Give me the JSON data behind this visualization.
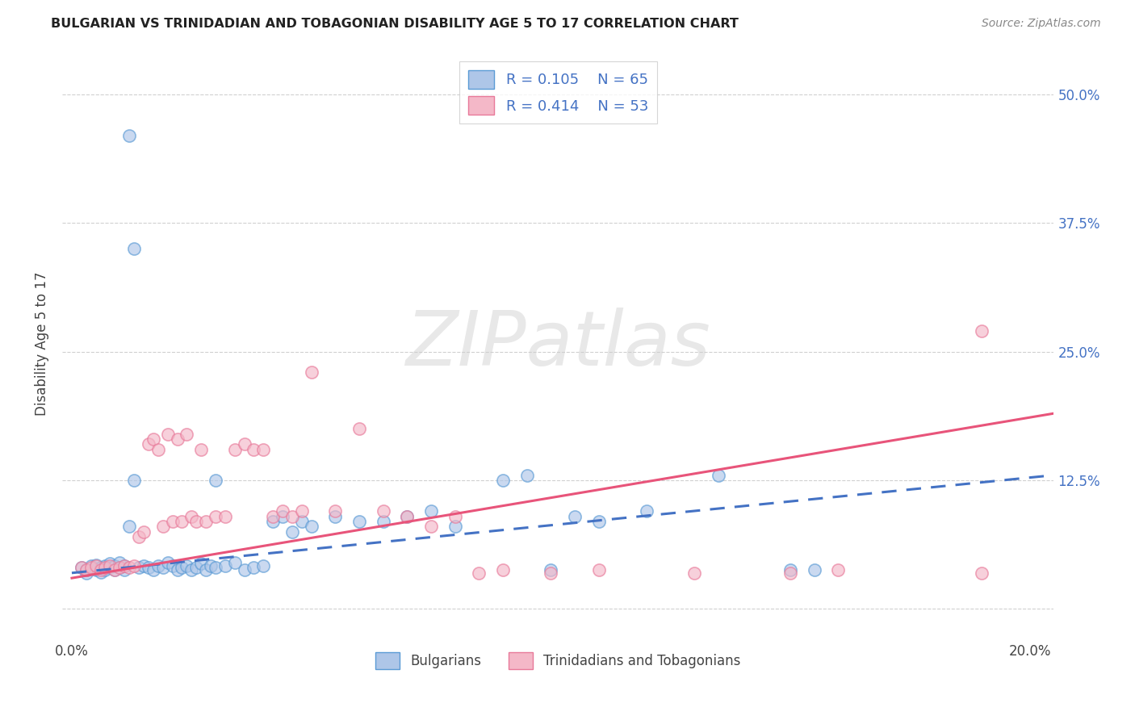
{
  "title": "BULGARIAN VS TRINIDADIAN AND TOBAGONIAN DISABILITY AGE 5 TO 17 CORRELATION CHART",
  "source": "Source: ZipAtlas.com",
  "ylabel": "Disability Age 5 to 17",
  "xlim": [
    -0.002,
    0.205
  ],
  "ylim": [
    -0.03,
    0.545
  ],
  "yticks": [
    0.0,
    0.125,
    0.25,
    0.375,
    0.5
  ],
  "ytick_labels_right": [
    "",
    "12.5%",
    "25.0%",
    "37.5%",
    "50.0%"
  ],
  "xticks": [
    0.0,
    0.05,
    0.1,
    0.15,
    0.2
  ],
  "xtick_labels": [
    "0.0%",
    "",
    "",
    "",
    "20.0%"
  ],
  "legend_label1": "Bulgarians",
  "legend_label2": "Trinidadians and Tobagonians",
  "blue_face": "#aec6e8",
  "blue_edge": "#5b9bd5",
  "pink_face": "#f4b8c8",
  "pink_edge": "#e87a9a",
  "blue_line_color": "#4472c4",
  "pink_line_color": "#e8547a",
  "bg_color": "#ffffff",
  "grid_color": "#d0d0d0",
  "blue_x": [
    0.002,
    0.003,
    0.003,
    0.004,
    0.005,
    0.005,
    0.006,
    0.006,
    0.007,
    0.007,
    0.008,
    0.008,
    0.009,
    0.009,
    0.01,
    0.01,
    0.011,
    0.011,
    0.012,
    0.013,
    0.014,
    0.015,
    0.016,
    0.017,
    0.018,
    0.019,
    0.02,
    0.021,
    0.022,
    0.023,
    0.024,
    0.025,
    0.026,
    0.027,
    0.028,
    0.029,
    0.03,
    0.032,
    0.034,
    0.036,
    0.038,
    0.04,
    0.042,
    0.044,
    0.046,
    0.048,
    0.05,
    0.055,
    0.06,
    0.065,
    0.07,
    0.075,
    0.08,
    0.09,
    0.095,
    0.1,
    0.105,
    0.11,
    0.12,
    0.135,
    0.15,
    0.155,
    0.012,
    0.013,
    0.03
  ],
  "blue_y": [
    0.04,
    0.035,
    0.038,
    0.042,
    0.038,
    0.043,
    0.036,
    0.04,
    0.038,
    0.042,
    0.04,
    0.044,
    0.038,
    0.042,
    0.04,
    0.045,
    0.038,
    0.042,
    0.46,
    0.35,
    0.04,
    0.042,
    0.04,
    0.038,
    0.042,
    0.04,
    0.045,
    0.042,
    0.038,
    0.04,
    0.042,
    0.038,
    0.04,
    0.044,
    0.038,
    0.042,
    0.04,
    0.042,
    0.045,
    0.038,
    0.04,
    0.042,
    0.085,
    0.09,
    0.075,
    0.085,
    0.08,
    0.09,
    0.085,
    0.085,
    0.09,
    0.095,
    0.08,
    0.125,
    0.13,
    0.038,
    0.09,
    0.085,
    0.095,
    0.13,
    0.038,
    0.038,
    0.08,
    0.125,
    0.125
  ],
  "pink_x": [
    0.002,
    0.003,
    0.004,
    0.005,
    0.006,
    0.007,
    0.008,
    0.009,
    0.01,
    0.011,
    0.012,
    0.013,
    0.014,
    0.015,
    0.016,
    0.017,
    0.018,
    0.019,
    0.02,
    0.021,
    0.022,
    0.023,
    0.024,
    0.025,
    0.026,
    0.027,
    0.028,
    0.03,
    0.032,
    0.034,
    0.036,
    0.038,
    0.04,
    0.042,
    0.044,
    0.046,
    0.048,
    0.05,
    0.055,
    0.06,
    0.065,
    0.07,
    0.075,
    0.08,
    0.085,
    0.09,
    0.1,
    0.11,
    0.13,
    0.15,
    0.16,
    0.19,
    0.19
  ],
  "pink_y": [
    0.04,
    0.038,
    0.04,
    0.042,
    0.038,
    0.04,
    0.042,
    0.038,
    0.04,
    0.042,
    0.04,
    0.042,
    0.07,
    0.075,
    0.16,
    0.165,
    0.155,
    0.08,
    0.17,
    0.085,
    0.165,
    0.085,
    0.17,
    0.09,
    0.085,
    0.155,
    0.085,
    0.09,
    0.09,
    0.155,
    0.16,
    0.155,
    0.155,
    0.09,
    0.095,
    0.09,
    0.095,
    0.23,
    0.095,
    0.175,
    0.095,
    0.09,
    0.08,
    0.09,
    0.035,
    0.038,
    0.035,
    0.038,
    0.035,
    0.035,
    0.038,
    0.27,
    0.035
  ],
  "blue_line_x0": 0.0,
  "blue_line_x1": 0.205,
  "blue_line_y0": 0.035,
  "blue_line_y1": 0.13,
  "pink_line_x0": 0.0,
  "pink_line_x1": 0.205,
  "pink_line_y0": 0.03,
  "pink_line_y1": 0.19,
  "dot_size": 120,
  "dot_alpha": 0.65,
  "dot_linewidth": 1.2
}
